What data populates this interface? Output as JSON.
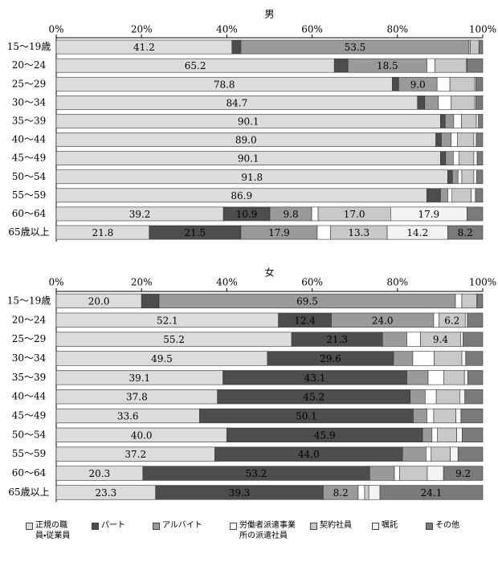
{
  "chart_data": [
    {
      "type": "bar",
      "orientation": "horizontal",
      "stacked": true,
      "title": "男",
      "categories": [
        "15〜19歳",
        "20〜24",
        "25〜29",
        "30〜34",
        "35〜39",
        "40〜44",
        "45〜49",
        "50〜54",
        "55〜59",
        "60〜64",
        "65歳以上"
      ],
      "xlim": [
        0,
        100
      ],
      "xticks": [
        {
          "value": 0,
          "label": "0%"
        },
        {
          "value": 20,
          "label": "20%"
        },
        {
          "value": 40,
          "label": "40%"
        },
        {
          "value": 60,
          "label": "60%"
        },
        {
          "value": 80,
          "label": "80%"
        },
        {
          "value": 100,
          "label": "100%"
        }
      ],
      "series": [
        {
          "name": "正規の職員・従業員",
          "color": "#dcdcdc",
          "values": [
            41.2,
            65.2,
            78.8,
            84.7,
            90.1,
            89.0,
            90.1,
            91.8,
            86.9,
            39.2,
            21.8
          ],
          "value_labels": [
            "41.2",
            "65.2",
            "78.8",
            "84.7",
            "90.1",
            "89.0",
            "90.1",
            "91.8",
            "86.9",
            "39.2",
            "21.8"
          ]
        },
        {
          "name": "パート",
          "color": "#4d4d4d",
          "values": [
            2.1,
            3.2,
            1.5,
            1.7,
            1.1,
            1.3,
            1.2,
            1.1,
            3.2,
            10.9,
            21.5
          ],
          "value_labels": [
            null,
            null,
            null,
            null,
            null,
            null,
            null,
            null,
            null,
            "10.9",
            "21.5"
          ]
        },
        {
          "name": "アルバイト",
          "color": "#9a9a9a",
          "values": [
            53.5,
            18.5,
            9.0,
            3.2,
            2.0,
            2.3,
            1.8,
            1.3,
            1.7,
            9.8,
            17.9
          ],
          "value_labels": [
            "53.5",
            "18.5",
            "9.0",
            null,
            null,
            null,
            null,
            null,
            null,
            "9.8",
            "17.9"
          ]
        },
        {
          "name": "労働者派遣事業所の派遣社員",
          "color": "#ffffff",
          "values": [
            0.3,
            1.9,
            3.0,
            3.0,
            1.8,
            1.5,
            1.3,
            0.9,
            1.0,
            1.5,
            3.1
          ],
          "value_labels": [
            null,
            null,
            null,
            null,
            null,
            null,
            null,
            null,
            null,
            null,
            null
          ]
        },
        {
          "name": "契約社員",
          "color": "#c8c8c8",
          "values": [
            2.0,
            7.3,
            5.8,
            5.5,
            3.5,
            3.8,
            3.5,
            2.8,
            4.5,
            17.0,
            13.3
          ],
          "value_labels": [
            null,
            null,
            null,
            null,
            null,
            null,
            null,
            null,
            null,
            "17.0",
            "13.3"
          ]
        },
        {
          "name": "嘱託",
          "color": "#f4f4f4",
          "values": [
            0,
            0.2,
            0.3,
            0.3,
            0.5,
            0.6,
            0.8,
            0.7,
            1.0,
            17.9,
            14.2
          ],
          "value_labels": [
            null,
            null,
            null,
            null,
            null,
            null,
            null,
            null,
            null,
            "17.9",
            "14.2"
          ]
        },
        {
          "name": "その他",
          "color": "#7a7a7a",
          "values": [
            0.9,
            3.7,
            1.6,
            1.6,
            1.0,
            1.5,
            1.3,
            1.4,
            1.7,
            3.7,
            8.2
          ],
          "value_labels": [
            null,
            null,
            null,
            null,
            null,
            null,
            null,
            null,
            null,
            null,
            "8.2"
          ]
        }
      ]
    },
    {
      "type": "bar",
      "orientation": "horizontal",
      "stacked": true,
      "title": "女",
      "categories": [
        "15〜19歳",
        "20〜24",
        "25〜29",
        "30〜34",
        "35〜39",
        "40〜44",
        "45〜49",
        "50〜54",
        "55〜59",
        "60〜64",
        "65歳以上"
      ],
      "xlim": [
        0,
        100
      ],
      "xticks": [
        {
          "value": 0,
          "label": "0%"
        },
        {
          "value": 20,
          "label": "20%"
        },
        {
          "value": 40,
          "label": "40%"
        },
        {
          "value": 60,
          "label": "60%"
        },
        {
          "value": 80,
          "label": "80%"
        },
        {
          "value": 100,
          "label": "100%"
        }
      ],
      "series": [
        {
          "name": "正規の職員・従業員",
          "color": "#dcdcdc",
          "values": [
            20.0,
            52.1,
            55.2,
            49.5,
            39.1,
            37.8,
            33.6,
            40.0,
            37.2,
            20.3,
            23.3
          ],
          "value_labels": [
            "20.0",
            "52.1",
            "55.2",
            "49.5",
            "39.1",
            "37.8",
            "33.6",
            "40.0",
            "37.2",
            "20.3",
            "23.3"
          ]
        },
        {
          "name": "パート",
          "color": "#4d4d4d",
          "values": [
            4.1,
            12.4,
            21.3,
            29.6,
            43.1,
            45.2,
            50.1,
            45.9,
            44.0,
            53.2,
            39.3
          ],
          "value_labels": [
            null,
            "12.4",
            "21.3",
            "29.6",
            "43.1",
            "45.2",
            "50.1",
            "45.9",
            "44.0",
            "53.2",
            "39.3"
          ]
        },
        {
          "name": "アルバイト",
          "color": "#9a9a9a",
          "values": [
            69.5,
            24.0,
            5.7,
            4.5,
            5.0,
            3.5,
            3.2,
            2.2,
            5.5,
            5.8,
            8.2
          ],
          "value_labels": [
            "69.5",
            "24.0",
            null,
            null,
            null,
            null,
            null,
            null,
            null,
            null,
            "8.2"
          ]
        },
        {
          "name": "労働者派遣事業所の派遣社員",
          "color": "#ffffff",
          "values": [
            1.5,
            1.2,
            3.2,
            5.0,
            3.7,
            2.6,
            1.6,
            1.3,
            1.2,
            1.2,
            1.5
          ],
          "value_labels": [
            null,
            null,
            null,
            null,
            null,
            null,
            null,
            null,
            null,
            null,
            null
          ]
        },
        {
          "name": "契約社員",
          "color": "#c8c8c8",
          "values": [
            3.5,
            6.2,
            9.4,
            6.5,
            4.8,
            5.5,
            5.2,
            4.5,
            4.5,
            6.5,
            1.0
          ],
          "value_labels": [
            null,
            "6.2",
            "9.4",
            null,
            null,
            null,
            null,
            null,
            null,
            null,
            null
          ]
        },
        {
          "name": "嘱託",
          "color": "#f4f4f4",
          "values": [
            0.2,
            0.5,
            0.6,
            0.9,
            0.8,
            1.2,
            1.2,
            1.3,
            1.8,
            3.8,
            2.6
          ],
          "value_labels": [
            null,
            null,
            null,
            null,
            null,
            null,
            null,
            null,
            null,
            null,
            null
          ]
        },
        {
          "name": "その他",
          "color": "#7a7a7a",
          "values": [
            1.2,
            3.6,
            4.6,
            4.0,
            3.5,
            4.2,
            5.1,
            4.8,
            5.8,
            9.2,
            24.1
          ],
          "value_labels": [
            null,
            null,
            null,
            null,
            null,
            null,
            null,
            null,
            null,
            "9.2",
            "24.1"
          ]
        }
      ]
    }
  ]
}
